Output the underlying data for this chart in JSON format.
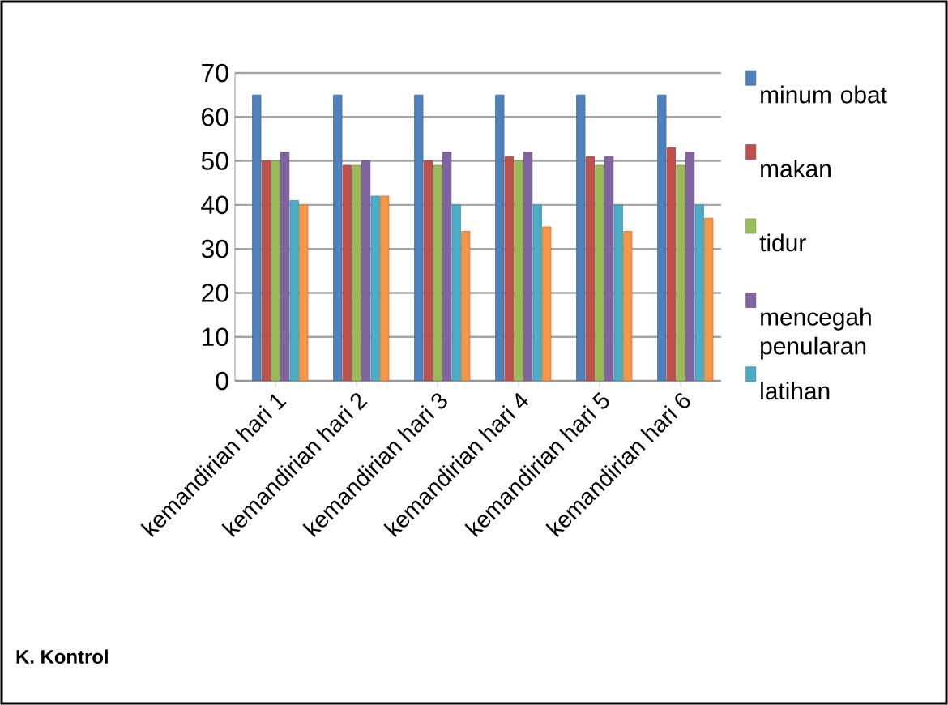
{
  "chart_data": {
    "type": "bar",
    "categories": [
      "kemandirian hari 1",
      "kemandirian hari 2",
      "kemandirian hari 3",
      "kemandirian hari 4",
      "kemandirian hari 5",
      "kemandirian hari 6"
    ],
    "series": [
      {
        "name": "minum obat",
        "color": "#4f81bd",
        "values": [
          65,
          65,
          65,
          65,
          65,
          65
        ]
      },
      {
        "name": "makan",
        "color": "#c0504d",
        "values": [
          50,
          49,
          50,
          51,
          51,
          53
        ]
      },
      {
        "name": "tidur",
        "color": "#9bbb59",
        "values": [
          50,
          49,
          49,
          50,
          49,
          49
        ]
      },
      {
        "name": "mencegah penularan",
        "color": "#8064a2",
        "values": [
          52,
          50,
          52,
          52,
          51,
          52
        ]
      },
      {
        "name": "latihan",
        "color": "#4bacc6",
        "values": [
          41,
          42,
          40,
          40,
          40,
          40
        ]
      },
      {
        "color": "#f79646",
        "values": [
          40,
          42,
          34,
          35,
          34,
          37
        ]
      }
    ],
    "ylim": [
      0,
      70
    ],
    "yticks": [
      0,
      10,
      20,
      30,
      40,
      50,
      60,
      70
    ],
    "grid": "y",
    "legend": "right",
    "annotations": [
      "K. Kontrol"
    ]
  }
}
